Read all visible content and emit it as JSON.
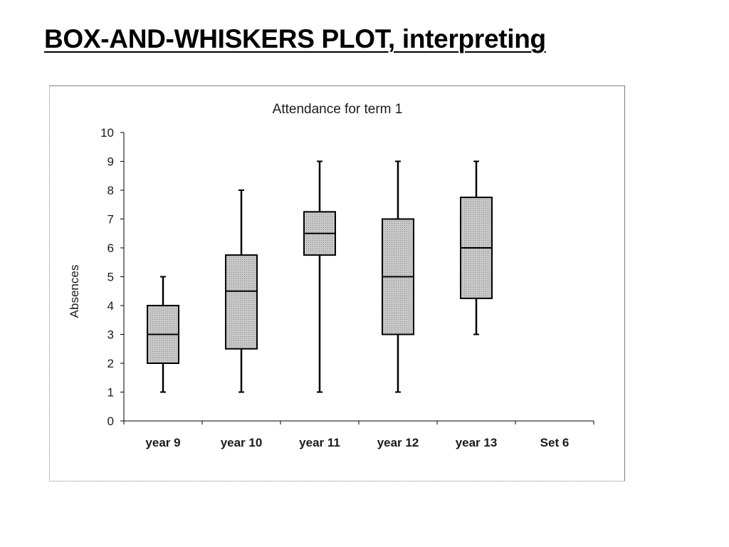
{
  "slide": {
    "title": "BOX-AND-WHISKERS PLOT, interpreting"
  },
  "chart_data": {
    "type": "boxplot",
    "title": "Attendance for term 1",
    "xlabel": "",
    "ylabel": "Absences",
    "ylim": [
      0,
      10
    ],
    "yticks": [
      0,
      1,
      2,
      3,
      4,
      5,
      6,
      7,
      8,
      9,
      10
    ],
    "categories": [
      "year 9",
      "year 10",
      "year 11",
      "year 12",
      "year 13",
      "Set 6"
    ],
    "series": [
      {
        "boxes": [
          {
            "category": "year 9",
            "min": 1,
            "q1": 2,
            "median": 3,
            "q3": 4,
            "max": 5
          },
          {
            "category": "year 10",
            "min": 1,
            "q1": 2.5,
            "median": 4.5,
            "q3": 5.75,
            "max": 8
          },
          {
            "category": "year 11",
            "min": 1,
            "q1": 5.75,
            "median": 6.5,
            "q3": 7.25,
            "max": 9
          },
          {
            "category": "year 12",
            "min": 1,
            "q1": 3,
            "median": 5,
            "q3": 7,
            "max": 9
          },
          {
            "category": "year 13",
            "min": 3,
            "q1": 4.25,
            "median": 6,
            "q3": 7.75,
            "max": 9
          }
        ]
      }
    ],
    "box_fill": "#c4c4c4",
    "line_color": "#000000",
    "grid": false,
    "legend": "none"
  }
}
